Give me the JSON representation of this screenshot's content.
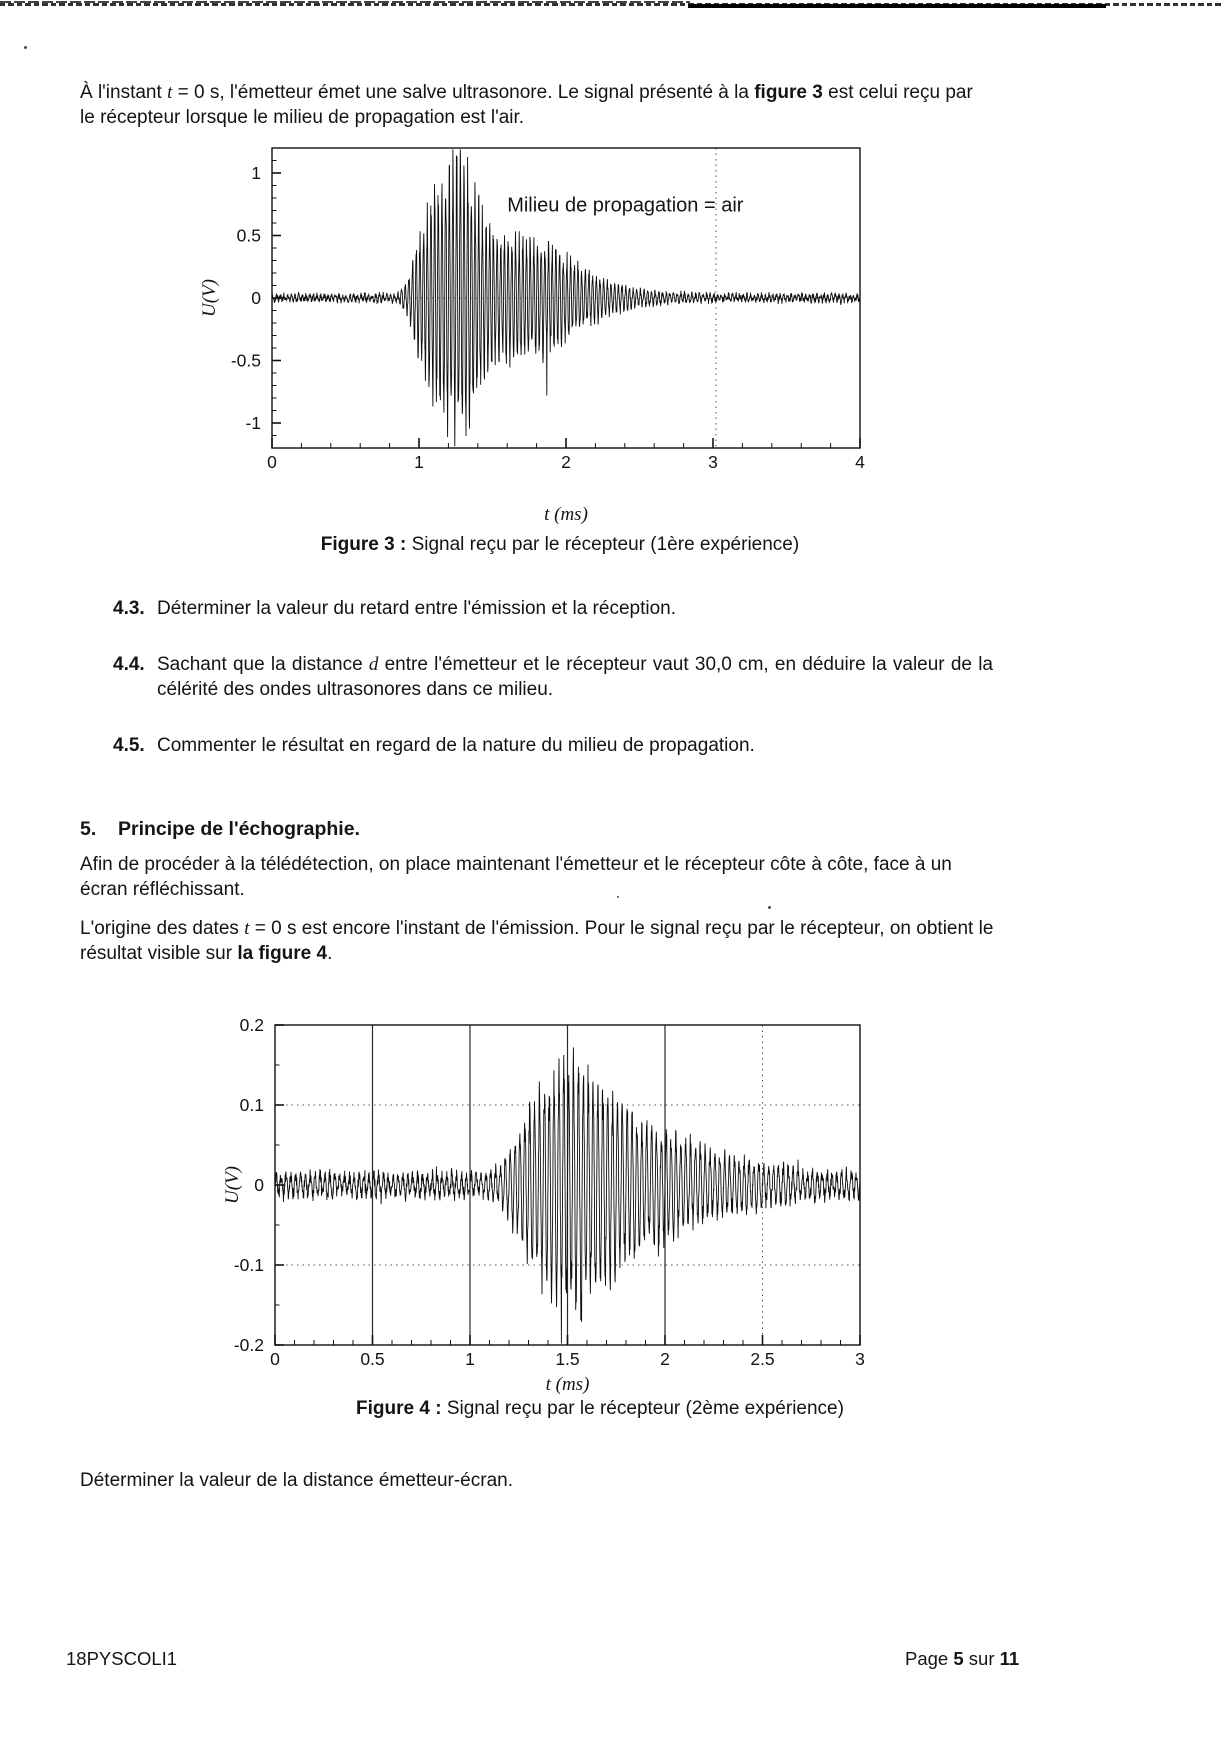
{
  "page": {
    "footer_left": "18PYSCOLI1",
    "footer_right_prefix": "Page ",
    "footer_page": "5",
    "footer_sur": " sur ",
    "footer_total": "11"
  },
  "intro": {
    "part1": "À l'instant ",
    "var_t": "t",
    "part2": " = 0 s, l'émetteur émet une salve ultrasonore. Le signal présenté à la ",
    "bold": "figure 3",
    "part3": " est celui reçu par le récepteur lorsque le milieu de propagation est l'air."
  },
  "figure3": {
    "caption_bold": "Figure 3 :",
    "caption_rest": " Signal reçu par le récepteur (1ère expérience)"
  },
  "questions": [
    {
      "num": "4.3.",
      "text": "Déterminer la valeur du retard entre l'émission et la réception."
    },
    {
      "num": "4.4.",
      "pre": "Sachant que la distance ",
      "var": "d",
      "post": " entre l'émetteur et le récepteur vaut 30,0 cm, en déduire la valeur de la célérité des ondes ultrasonores dans ce milieu."
    },
    {
      "num": "4.5.",
      "text": "Commenter le résultat en regard de la nature du milieu de propagation."
    }
  ],
  "section5": {
    "num": "5.",
    "title": "Principe de l'échographie.",
    "para1": "Afin de procéder à la télédétection, on place maintenant l'émetteur et le récepteur côte à côte, face à un écran réfléchissant.",
    "para2_a": "L'origine des dates  ",
    "para2_var": "t",
    "para2_b": " = 0 s est encore  l'instant de l'émission. Pour le signal reçu par le récepteur, on obtient le résultat visible sur ",
    "para2_bold": "la figure 4",
    "para2_c": "."
  },
  "figure4": {
    "caption_bold": "Figure 4 :",
    "caption_rest": " Signal reçu par le récepteur (2ème expérience)"
  },
  "closing": "Déterminer la valeur de la distance émetteur-écran.",
  "chart_data": [
    {
      "id": "figure3",
      "type": "line",
      "title": "Signal reçu par le récepteur (1ère expérience)",
      "annotation": "Milieu de propagation = air",
      "annotation_xy": [
        1.6,
        0.75
      ],
      "xlabel": "t (ms)",
      "ylabel": "U(V)",
      "xlim": [
        0,
        4
      ],
      "ylim": [
        -1.2,
        1.2
      ],
      "xticks": [
        0,
        1,
        2,
        3,
        4
      ],
      "xtick_labels": [
        "0",
        "1",
        "2",
        "3",
        "4"
      ],
      "yticks": [
        1,
        0.5,
        0,
        -0.5,
        -1
      ],
      "ytick_labels": [
        "1",
        "0.5",
        "0",
        "-0.5",
        "-1"
      ],
      "x_minor_step": 0.2,
      "y_minor_step": 0.1,
      "grid": {
        "horizontal_dotted": [
          0
        ],
        "vertical_dotted": [
          3.02
        ]
      },
      "carrier_freq_per_ms": 40,
      "noise_amplitude": 0.022,
      "envelope": [
        [
          0,
          0.02
        ],
        [
          0.85,
          0.025
        ],
        [
          0.92,
          0.12
        ],
        [
          1.0,
          0.45
        ],
        [
          1.1,
          0.78
        ],
        [
          1.2,
          1.02
        ],
        [
          1.28,
          1.12
        ],
        [
          1.35,
          0.95
        ],
        [
          1.45,
          0.6
        ],
        [
          1.55,
          0.48
        ],
        [
          1.7,
          0.46
        ],
        [
          1.85,
          0.42
        ],
        [
          2.0,
          0.32
        ],
        [
          2.15,
          0.2
        ],
        [
          2.3,
          0.12
        ],
        [
          2.5,
          0.06
        ],
        [
          2.7,
          0.035
        ],
        [
          3.0,
          0.025
        ],
        [
          4.0,
          0.022
        ]
      ],
      "description": "Ultrasonic burst through air: emission at t = 0 s, signal received from ~0.9 ms, peak amplitude ~1.1 V near t = 1.3 ms, decaying back to noise level by ~2.7 ms"
    },
    {
      "id": "figure4",
      "type": "line",
      "title": "Signal reçu par le récepteur (2ème expérience)",
      "xlabel": "t (ms)",
      "ylabel": "U(V)",
      "xlim": [
        0,
        3
      ],
      "ylim": [
        -0.2,
        0.2
      ],
      "xticks": [
        0,
        0.5,
        1,
        1.5,
        2,
        2.5,
        3
      ],
      "xtick_labels": [
        "0",
        "0.5",
        "1",
        "1.5",
        "2",
        "2.5",
        "3"
      ],
      "yticks": [
        0.2,
        0.1,
        0,
        -0.1,
        -0.2
      ],
      "ytick_labels": [
        "0.2",
        "0.1",
        "0",
        "-0.1",
        "-0.2"
      ],
      "x_minor_step": 0.1,
      "y_minor_step": 0.05,
      "grid": {
        "vertical_solid": [
          0.5,
          1,
          1.5,
          2
        ],
        "vertical_dotted": [
          2.5
        ],
        "horizontal_dotted": [
          0.1,
          -0.1
        ]
      },
      "carrier_freq_per_ms": 40,
      "noise_amplitude": 0.008,
      "envelope": [
        [
          0,
          0.012
        ],
        [
          1.12,
          0.013
        ],
        [
          1.2,
          0.04
        ],
        [
          1.28,
          0.08
        ],
        [
          1.38,
          0.12
        ],
        [
          1.48,
          0.145
        ],
        [
          1.55,
          0.15
        ],
        [
          1.62,
          0.13
        ],
        [
          1.72,
          0.11
        ],
        [
          1.85,
          0.085
        ],
        [
          2.0,
          0.062
        ],
        [
          2.15,
          0.048
        ],
        [
          2.3,
          0.035
        ],
        [
          2.5,
          0.025
        ],
        [
          2.75,
          0.016
        ],
        [
          3.0,
          0.014
        ]
      ],
      "description": "Echo experiment (emitter and receiver side by side facing a reflecting screen): noise band ~±0.02 V, echo burst from ~1.2 ms peaking ~0.15 V near t = 1.5 ms, fading by ~2.3 ms"
    }
  ]
}
